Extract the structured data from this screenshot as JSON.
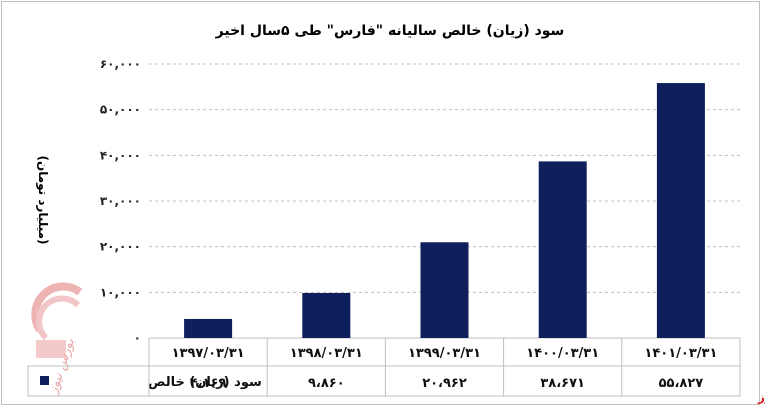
{
  "chart_data": {
    "type": "bar",
    "title": "سود (زیان) خالص سالیانه \"فارس\" طی ۵سال اخیر",
    "ylabel": "(میلیارد تومان)",
    "ylim": [
      0,
      60000
    ],
    "yticks": [
      "۰",
      "۱۰,۰۰۰",
      "۲۰,۰۰۰",
      "۳۰,۰۰۰",
      "۴۰,۰۰۰",
      "۵۰,۰۰۰",
      "۶۰,۰۰۰"
    ],
    "ytick_values": [
      0,
      10000,
      20000,
      30000,
      40000,
      50000,
      60000
    ],
    "categories": [
      "۱۳۹۷/۰۳/۳۱",
      "۱۳۹۸/۰۳/۳۱",
      "۱۳۹۹/۰۳/۳۱",
      "۱۴۰۰/۰۳/۳۱",
      "۱۴۰۱/۰۳/۳۱"
    ],
    "series": [
      {
        "name": "سود (زیان) خالص",
        "values": [
          4169,
          9860,
          20962,
          38671,
          55827
        ],
        "value_labels": [
          "۴،۱۶۹",
          "۹،۸۶۰",
          "۲۰،۹۶۲",
          "۳۸،۶۷۱",
          "۵۵،۸۲۷"
        ],
        "color": "#0e1f5b"
      }
    ],
    "grid": true,
    "legend": "data-table"
  },
  "brand_text": "بورس نیوز",
  "watermark_text": "بورس نیوز",
  "colors": {
    "bar": "#0e1f5b",
    "grid": "#bfbfbf",
    "brand": "#d91c1c",
    "watermark": "#e9a7a7"
  }
}
